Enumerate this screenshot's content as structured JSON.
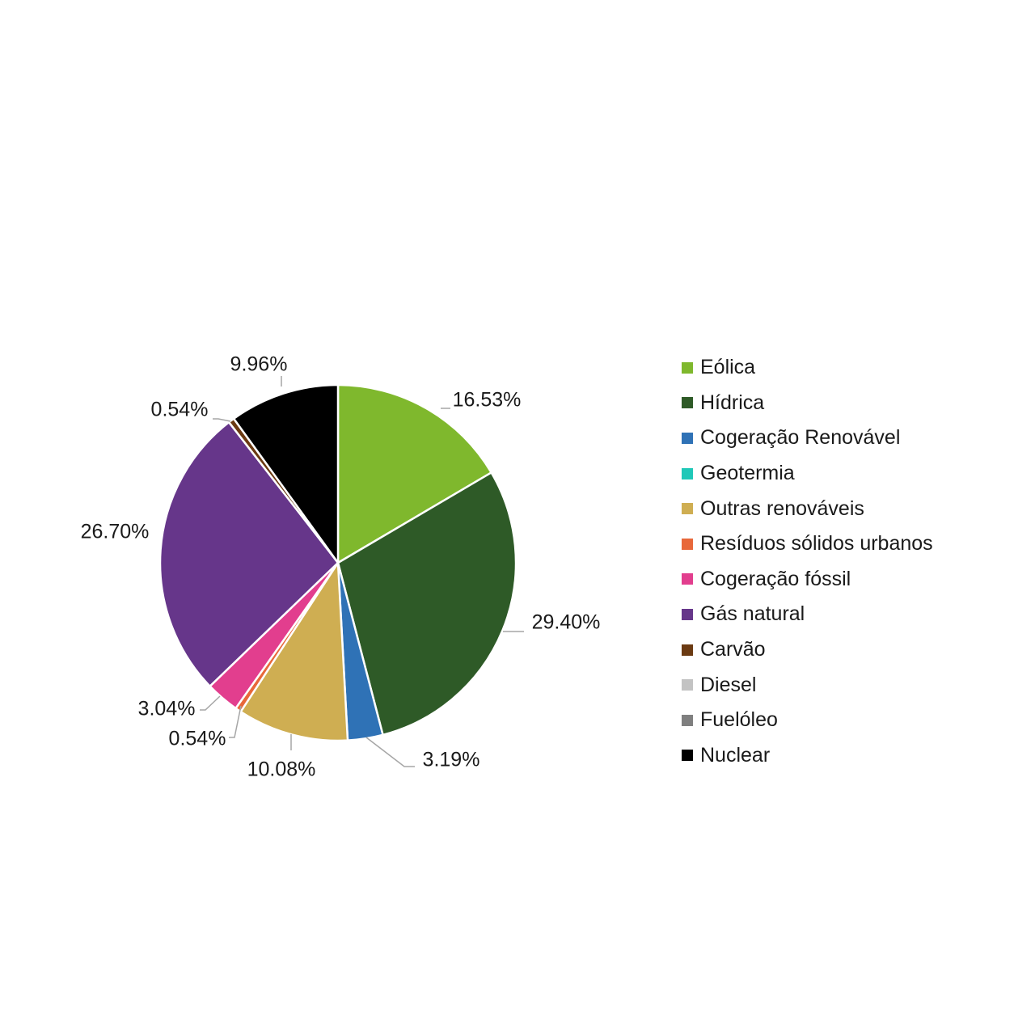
{
  "chart_data": {
    "type": "pie",
    "legend_position": "right",
    "slices": [
      {
        "name": "Eólica",
        "value": 16.53,
        "label": "16.53%",
        "color": "#7fb82d"
      },
      {
        "name": "Hídrica",
        "value": 29.4,
        "label": "29.40%",
        "color": "#2e5a27"
      },
      {
        "name": "Cogeração Renovável",
        "value": 3.19,
        "label": "3.19%",
        "color": "#2f72b6"
      },
      {
        "name": "Geotermia",
        "value": 0,
        "label": "",
        "color": "#1fc8b8"
      },
      {
        "name": "Outras renováveis",
        "value": 10.08,
        "label": "10.08%",
        "color": "#cfae52"
      },
      {
        "name": "Resíduos sólidos urbanos",
        "value": 0.54,
        "label": "0.54%",
        "color": "#e8683a"
      },
      {
        "name": "Cogeração fóssil",
        "value": 3.04,
        "label": "3.04%",
        "color": "#e23e8e"
      },
      {
        "name": "Gás natural",
        "value": 26.7,
        "label": "26.70%",
        "color": "#66368a"
      },
      {
        "name": "Carvão",
        "value": 0.54,
        "label": "0.54%",
        "color": "#6b3a12"
      },
      {
        "name": "Diesel",
        "value": 0,
        "label": "",
        "color": "#c3c3c3"
      },
      {
        "name": "Fuelóleo",
        "value": 0,
        "label": "",
        "color": "#7f7f7f"
      },
      {
        "name": "Nuclear",
        "value": 9.96,
        "label": "9.96%",
        "color": "#000000"
      }
    ]
  }
}
